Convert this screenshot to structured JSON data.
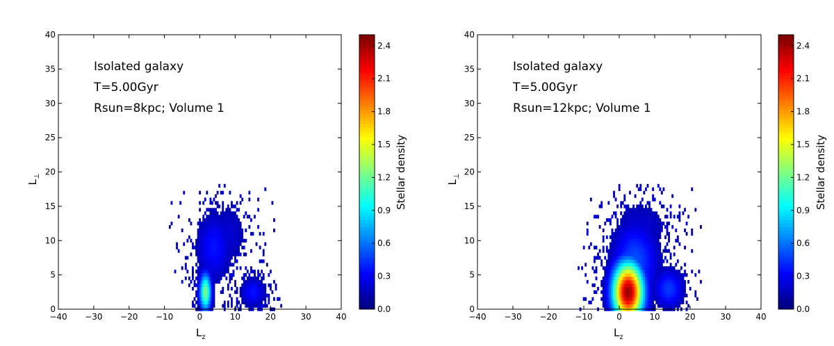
{
  "chart_data": [
    {
      "type": "heatmap",
      "xlabel": "L",
      "xlabel_sub": "z",
      "ylabel": "L",
      "ylabel_sub": "⊥",
      "xlim": [
        -40,
        40
      ],
      "ylim": [
        0,
        40
      ],
      "xticks": [
        "−40",
        "−30",
        "−20",
        "−10",
        "0",
        "10",
        "20",
        "30",
        "40"
      ],
      "yticks": [
        "0",
        "5",
        "10",
        "15",
        "20",
        "25",
        "30",
        "35",
        "40"
      ],
      "annotations": [
        "Isolated galaxy",
        "T=5.00Gyr",
        "Rsun=8kpc; Volume 1"
      ],
      "colorbar": {
        "label": "Stellar density",
        "range": [
          0.0,
          2.5
        ],
        "ticks": [
          "0.0",
          "0.3",
          "0.6",
          "0.9",
          "1.2",
          "1.5",
          "1.8",
          "2.1",
          "2.4"
        ],
        "colormap": "jet"
      },
      "clusters": [
        {
          "x": 1.5,
          "y": 2.5,
          "sx": 1.2,
          "sy": 2.0,
          "peak": 1.25,
          "n": 160
        },
        {
          "x": 4.0,
          "y": 9.0,
          "sx": 3.5,
          "sy": 3.5,
          "peak": 0.35,
          "n": 280
        },
        {
          "x": 15.0,
          "y": 2.5,
          "sx": 2.5,
          "sy": 1.5,
          "peak": 0.35,
          "n": 160
        },
        {
          "x": 8.0,
          "y": 11.0,
          "sx": 4.0,
          "sy": 3.5,
          "peak": 0.2,
          "n": 140
        }
      ]
    },
    {
      "type": "heatmap",
      "xlabel": "L",
      "xlabel_sub": "z",
      "ylabel": "L",
      "ylabel_sub": "⊥",
      "xlim": [
        -40,
        40
      ],
      "ylim": [
        0,
        40
      ],
      "xticks": [
        "−40",
        "−30",
        "−20",
        "−10",
        "0",
        "10",
        "20",
        "30",
        "40"
      ],
      "yticks": [
        "0",
        "5",
        "10",
        "15",
        "20",
        "25",
        "30",
        "35",
        "40"
      ],
      "annotations": [
        "Isolated galaxy",
        "T=5.00Gyr",
        "Rsun=12kpc; Volume 1"
      ],
      "colorbar": {
        "label": "Stellar density",
        "range": [
          0.0,
          2.5
        ],
        "ticks": [
          "0.0",
          "0.3",
          "0.6",
          "0.9",
          "1.2",
          "1.5",
          "1.8",
          "2.1",
          "2.4"
        ],
        "colormap": "jet"
      },
      "clusters": [
        {
          "x": 2.5,
          "y": 2.5,
          "sx": 3.0,
          "sy": 3.0,
          "peak": 2.45,
          "n": 420
        },
        {
          "x": 4.5,
          "y": 7.0,
          "sx": 4.5,
          "sy": 4.0,
          "peak": 0.5,
          "n": 360
        },
        {
          "x": 14.0,
          "y": 3.0,
          "sx": 3.0,
          "sy": 2.0,
          "peak": 0.45,
          "n": 160
        },
        {
          "x": 6.0,
          "y": 12.0,
          "sx": 6.0,
          "sy": 3.0,
          "peak": 0.2,
          "n": 200
        }
      ]
    }
  ]
}
